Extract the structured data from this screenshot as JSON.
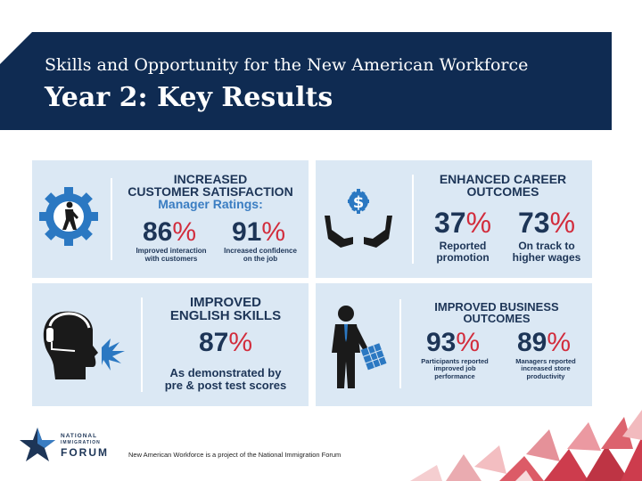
{
  "header": {
    "subtitle": "Skills and Opportunity for the New American Workforce",
    "title": "Year 2: Key Results"
  },
  "panels": {
    "customer": {
      "heading1": "INCREASED",
      "heading2": "CUSTOMER SATISFACTION",
      "subheading": "Manager Ratings:",
      "stat1_value": "86",
      "stat1_unit": "%",
      "stat1_caption1": "Improved interaction",
      "stat1_caption2": "with customers",
      "stat2_value": "91",
      "stat2_unit": "%",
      "stat2_caption1": "Increased confidence",
      "stat2_caption2": "on the job"
    },
    "career": {
      "heading1": "ENHANCED CAREER",
      "heading2": "OUTCOMES",
      "stat1_value": "37",
      "stat1_unit": "%",
      "stat1_caption1": "Reported",
      "stat1_caption2": "promotion",
      "stat2_value": "73",
      "stat2_unit": "%",
      "stat2_caption1": "On track to",
      "stat2_caption2": "higher wages"
    },
    "english": {
      "heading1": "IMPROVED",
      "heading2": "ENGLISH SKILLS",
      "stat_value": "87",
      "stat_unit": "%",
      "caption1": "As demonstrated by",
      "caption2": "pre & post test scores"
    },
    "business": {
      "heading1": "IMPROVED BUSINESS",
      "heading2": "OUTCOMES",
      "stat1_value": "93",
      "stat1_unit": "%",
      "stat1_caption1": "Participants reported",
      "stat1_caption2": "improved job",
      "stat1_caption3": "performance",
      "stat2_value": "89",
      "stat2_unit": "%",
      "stat2_caption1": "Managers reported",
      "stat2_caption2": "increased store",
      "stat2_caption3": "productivity"
    }
  },
  "footer": {
    "text": "New American Workforce is a project of the National Immigration Forum",
    "logo_line1": "NATIONAL",
    "logo_line2": "IMMIGRATION",
    "logo_line3": "FORUM"
  },
  "colors": {
    "navy": "#0f2b52",
    "panel": "#dbe8f4",
    "red": "#d22c3c",
    "blue": "#3a7dc2"
  }
}
